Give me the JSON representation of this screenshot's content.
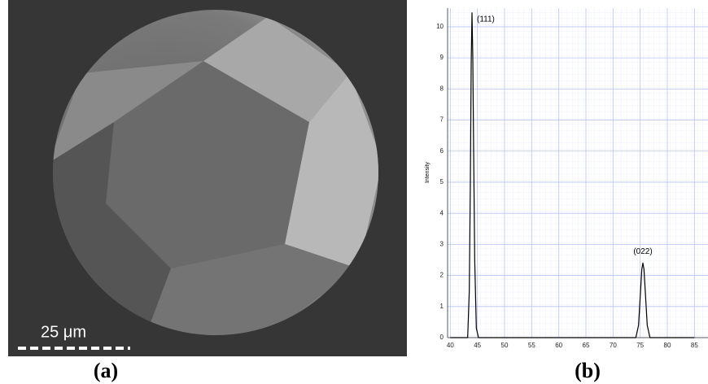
{
  "panels": {
    "a": {
      "label": "(a)",
      "scale_bar": "25 μm"
    },
    "b": {
      "label": "(b)"
    }
  },
  "chart_data": {
    "type": "line",
    "y_label": "Intensity",
    "x": [
      40,
      43.2,
      43.5,
      43.7,
      43.85,
      44.0,
      44.15,
      44.3,
      44.5,
      44.8,
      45.2,
      74.2,
      74.7,
      75.0,
      75.3,
      75.5,
      75.7,
      76.0,
      76.3,
      76.8,
      85
    ],
    "series": [
      {
        "color": "#000000",
        "values": [
          0,
          0,
          1.5,
          5,
          8.8,
          10.45,
          9,
          6,
          2.5,
          0.3,
          0,
          0,
          0.4,
          1.3,
          2.2,
          2.4,
          2.2,
          1.3,
          0.4,
          0,
          0
        ]
      }
    ],
    "annotations": [
      {
        "text": "(111)",
        "x": 44.0,
        "y": 10.45
      },
      {
        "text": "(022)",
        "x": 75.5,
        "y": 2.4
      }
    ],
    "xlim": [
      39.5,
      87.5
    ],
    "xticks": [
      40,
      45,
      50,
      55,
      60,
      65,
      70,
      75,
      80,
      85
    ],
    "ylim": [
      0,
      10.6
    ],
    "yticks": [
      0,
      1,
      2,
      3,
      4,
      5,
      6,
      7,
      8,
      9,
      10
    ],
    "grid": true,
    "grid_color": "#b8c4f0"
  }
}
